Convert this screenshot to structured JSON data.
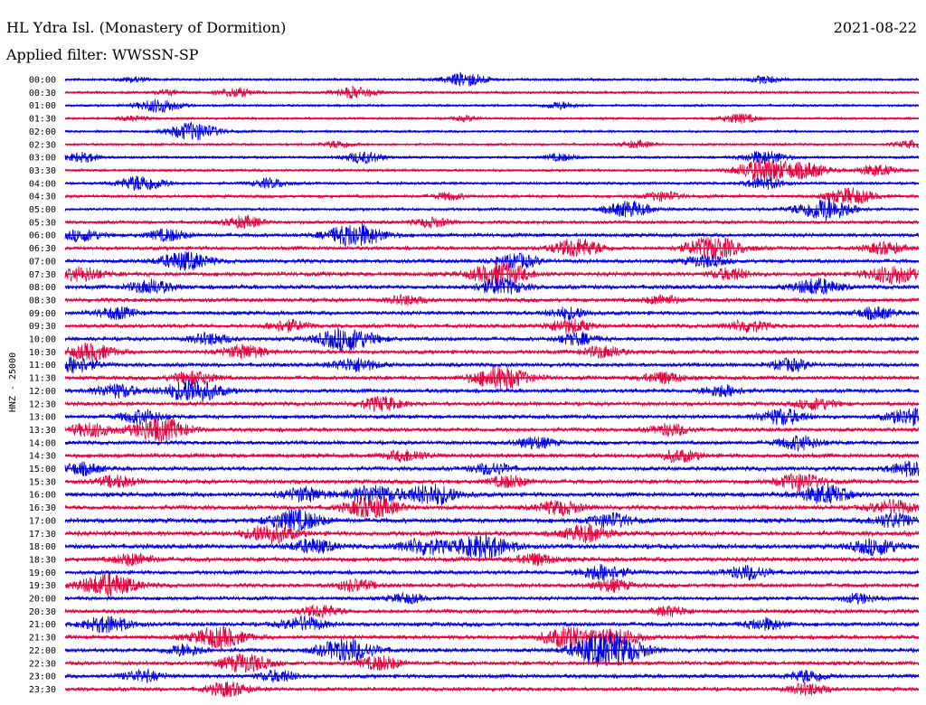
{
  "header": {
    "station": "HL Ydra Isl. (Monastery of Dormition)",
    "date": "2021-08-22",
    "filter": "Applied filter: WWSSN-SP"
  },
  "chart_data": {
    "type": "line",
    "title": "HL Ydra Isl. (Monastery of Dormition)",
    "ylabel": "HNZ - 25000",
    "trace_colors": [
      "#0000e6",
      "#e8003c"
    ],
    "rows": [
      {
        "label": "00:00",
        "color": "blue",
        "level": 0.3,
        "events": [
          [
            0.47,
            0.6
          ],
          [
            0.82,
            0.3
          ],
          [
            0.08,
            0.2
          ]
        ]
      },
      {
        "label": "00:30",
        "color": "red",
        "level": 0.3,
        "events": [
          [
            0.2,
            0.4
          ],
          [
            0.34,
            0.5
          ],
          [
            0.12,
            0.2
          ]
        ]
      },
      {
        "label": "01:00",
        "color": "blue",
        "level": 0.25,
        "events": [
          [
            0.11,
            0.6
          ],
          [
            0.58,
            0.3
          ]
        ]
      },
      {
        "label": "01:30",
        "color": "red",
        "level": 0.25,
        "events": [
          [
            0.08,
            0.2
          ],
          [
            0.47,
            0.2
          ],
          [
            0.79,
            0.4
          ]
        ]
      },
      {
        "label": "02:00",
        "color": "blue",
        "level": 0.25,
        "events": [
          [
            0.15,
            0.8
          ]
        ]
      },
      {
        "label": "02:30",
        "color": "red",
        "level": 0.25,
        "events": [
          [
            0.32,
            0.3
          ],
          [
            0.67,
            0.3
          ],
          [
            0.99,
            0.3
          ]
        ]
      },
      {
        "label": "03:00",
        "color": "blue",
        "level": 0.3,
        "events": [
          [
            0.02,
            0.4
          ],
          [
            0.35,
            0.5
          ],
          [
            0.58,
            0.3
          ],
          [
            0.82,
            0.6
          ]
        ]
      },
      {
        "label": "03:30",
        "color": "red",
        "level": 0.3,
        "events": [
          [
            0.82,
            1.0
          ],
          [
            0.87,
            0.6
          ],
          [
            0.95,
            0.5
          ]
        ]
      },
      {
        "label": "04:00",
        "color": "blue",
        "level": 0.35,
        "events": [
          [
            0.09,
            0.7
          ],
          [
            0.24,
            0.4
          ],
          [
            0.82,
            0.5
          ]
        ]
      },
      {
        "label": "04:30",
        "color": "red",
        "level": 0.4,
        "events": [
          [
            0.45,
            0.3
          ],
          [
            0.7,
            0.4
          ],
          [
            0.92,
            0.7
          ]
        ]
      },
      {
        "label": "05:00",
        "color": "blue",
        "level": 0.35,
        "events": [
          [
            0.66,
            0.7
          ],
          [
            0.89,
            1.0
          ]
        ]
      },
      {
        "label": "05:30",
        "color": "red",
        "level": 0.45,
        "events": [
          [
            0.21,
            0.5
          ],
          [
            0.43,
            0.4
          ]
        ]
      },
      {
        "label": "06:00",
        "color": "blue",
        "level": 0.55,
        "events": [
          [
            0.34,
            1.0
          ],
          [
            0.02,
            0.5
          ],
          [
            0.12,
            0.5
          ]
        ]
      },
      {
        "label": "06:30",
        "color": "red",
        "level": 0.55,
        "events": [
          [
            0.6,
            0.8
          ],
          [
            0.76,
            1.0
          ],
          [
            0.96,
            0.5
          ]
        ]
      },
      {
        "label": "07:00",
        "color": "blue",
        "level": 0.6,
        "events": [
          [
            0.14,
            0.8
          ],
          [
            0.53,
            0.6
          ],
          [
            0.75,
            0.5
          ]
        ]
      },
      {
        "label": "07:30",
        "color": "red",
        "level": 0.65,
        "events": [
          [
            0.02,
            0.6
          ],
          [
            0.51,
            1.0
          ],
          [
            0.78,
            0.5
          ],
          [
            0.97,
            0.8
          ]
        ]
      },
      {
        "label": "08:00",
        "color": "blue",
        "level": 0.65,
        "events": [
          [
            0.1,
            0.6
          ],
          [
            0.51,
            0.7
          ],
          [
            0.88,
            0.7
          ]
        ]
      },
      {
        "label": "08:30",
        "color": "red",
        "level": 0.6,
        "events": [
          [
            0.4,
            0.4
          ],
          [
            0.7,
            0.4
          ]
        ]
      },
      {
        "label": "09:00",
        "color": "blue",
        "level": 0.6,
        "events": [
          [
            0.06,
            0.5
          ],
          [
            0.59,
            0.5
          ],
          [
            0.95,
            0.5
          ]
        ]
      },
      {
        "label": "09:30",
        "color": "red",
        "level": 0.6,
        "events": [
          [
            0.26,
            0.5
          ],
          [
            0.59,
            0.6
          ],
          [
            0.8,
            0.5
          ]
        ]
      },
      {
        "label": "10:00",
        "color": "blue",
        "level": 0.6,
        "events": [
          [
            0.33,
            1.0
          ],
          [
            0.6,
            0.5
          ],
          [
            0.17,
            0.5
          ]
        ]
      },
      {
        "label": "10:30",
        "color": "red",
        "level": 0.6,
        "events": [
          [
            0.03,
            0.7
          ],
          [
            0.21,
            0.6
          ],
          [
            0.63,
            0.5
          ]
        ]
      },
      {
        "label": "11:00",
        "color": "blue",
        "level": 0.6,
        "events": [
          [
            0.01,
            0.7
          ],
          [
            0.34,
            0.6
          ],
          [
            0.85,
            0.5
          ]
        ]
      },
      {
        "label": "11:30",
        "color": "red",
        "level": 0.6,
        "events": [
          [
            0.15,
            0.6
          ],
          [
            0.51,
            1.0
          ],
          [
            0.7,
            0.5
          ]
        ]
      },
      {
        "label": "12:00",
        "color": "blue",
        "level": 0.6,
        "events": [
          [
            0.15,
            1.0
          ],
          [
            0.06,
            0.6
          ],
          [
            0.77,
            0.5
          ]
        ]
      },
      {
        "label": "12:30",
        "color": "red",
        "level": 0.6,
        "events": [
          [
            0.37,
            0.6
          ],
          [
            0.88,
            0.5
          ]
        ]
      },
      {
        "label": "13:00",
        "color": "blue",
        "level": 0.6,
        "events": [
          [
            0.09,
            0.6
          ],
          [
            0.84,
            0.7
          ],
          [
            0.99,
            0.7
          ]
        ]
      },
      {
        "label": "13:30",
        "color": "red",
        "level": 0.6,
        "events": [
          [
            0.11,
            1.0
          ],
          [
            0.03,
            0.6
          ],
          [
            0.71,
            0.5
          ]
        ]
      },
      {
        "label": "14:00",
        "color": "blue",
        "level": 0.6,
        "events": [
          [
            0.55,
            0.5
          ],
          [
            0.86,
            0.6
          ]
        ]
      },
      {
        "label": "14:30",
        "color": "red",
        "level": 0.65,
        "events": [
          [
            0.4,
            0.5
          ],
          [
            0.72,
            0.5
          ]
        ]
      },
      {
        "label": "15:00",
        "color": "blue",
        "level": 0.65,
        "events": [
          [
            0.02,
            0.5
          ],
          [
            0.5,
            0.5
          ],
          [
            0.99,
            0.6
          ]
        ]
      },
      {
        "label": "15:30",
        "color": "red",
        "level": 0.65,
        "events": [
          [
            0.06,
            0.5
          ],
          [
            0.86,
            0.7
          ],
          [
            0.52,
            0.5
          ]
        ]
      },
      {
        "label": "16:00",
        "color": "blue",
        "level": 0.7,
        "events": [
          [
            0.43,
            0.9
          ],
          [
            0.36,
            0.8
          ],
          [
            0.89,
            0.8
          ],
          [
            0.28,
            0.6
          ]
        ]
      },
      {
        "label": "16:30",
        "color": "red",
        "level": 0.7,
        "events": [
          [
            0.36,
            0.9
          ],
          [
            0.58,
            0.6
          ],
          [
            0.97,
            0.6
          ]
        ]
      },
      {
        "label": "17:00",
        "color": "blue",
        "level": 0.75,
        "events": [
          [
            0.27,
            0.9
          ],
          [
            0.64,
            0.6
          ],
          [
            0.97,
            0.6
          ]
        ]
      },
      {
        "label": "17:30",
        "color": "red",
        "level": 0.75,
        "events": [
          [
            0.24,
            0.8
          ],
          [
            0.61,
            0.7
          ]
        ]
      },
      {
        "label": "18:00",
        "color": "blue",
        "level": 0.75,
        "events": [
          [
            0.49,
            1.0
          ],
          [
            0.42,
            0.7
          ],
          [
            0.29,
            0.6
          ],
          [
            0.95,
            0.7
          ]
        ]
      },
      {
        "label": "18:30",
        "color": "red",
        "level": 0.7,
        "events": [
          [
            0.08,
            0.5
          ],
          [
            0.55,
            0.5
          ]
        ]
      },
      {
        "label": "19:00",
        "color": "blue",
        "level": 0.6,
        "events": [
          [
            0.63,
            0.7
          ],
          [
            0.8,
            0.6
          ]
        ]
      },
      {
        "label": "19:30",
        "color": "red",
        "level": 0.6,
        "events": [
          [
            0.05,
            1.0
          ],
          [
            0.64,
            0.5
          ],
          [
            0.34,
            0.5
          ]
        ]
      },
      {
        "label": "20:00",
        "color": "blue",
        "level": 0.55,
        "events": [
          [
            0.4,
            0.4
          ],
          [
            0.93,
            0.4
          ]
        ]
      },
      {
        "label": "20:30",
        "color": "red",
        "level": 0.6,
        "events": [
          [
            0.3,
            0.5
          ],
          [
            0.71,
            0.4
          ]
        ]
      },
      {
        "label": "21:00",
        "color": "blue",
        "level": 0.65,
        "events": [
          [
            0.05,
            0.7
          ],
          [
            0.28,
            0.6
          ],
          [
            0.82,
            0.5
          ]
        ]
      },
      {
        "label": "21:30",
        "color": "red",
        "level": 0.6,
        "events": [
          [
            0.18,
            0.9
          ],
          [
            0.59,
            0.9
          ],
          [
            0.65,
            0.7
          ]
        ]
      },
      {
        "label": "22:00",
        "color": "blue",
        "level": 0.6,
        "events": [
          [
            0.65,
            1.0
          ],
          [
            0.62,
            0.9
          ],
          [
            0.33,
            1.0
          ],
          [
            0.14,
            0.5
          ]
        ]
      },
      {
        "label": "22:30",
        "color": "red",
        "level": 0.6,
        "events": [
          [
            0.21,
            0.8
          ],
          [
            0.37,
            0.6
          ]
        ]
      },
      {
        "label": "23:00",
        "color": "blue",
        "level": 0.6,
        "events": [
          [
            0.09,
            0.5
          ],
          [
            0.87,
            0.5
          ],
          [
            0.25,
            0.5
          ]
        ]
      },
      {
        "label": "23:30",
        "color": "red",
        "level": 0.55,
        "events": [
          [
            0.19,
            0.6
          ],
          [
            0.87,
            0.5
          ]
        ]
      }
    ]
  }
}
